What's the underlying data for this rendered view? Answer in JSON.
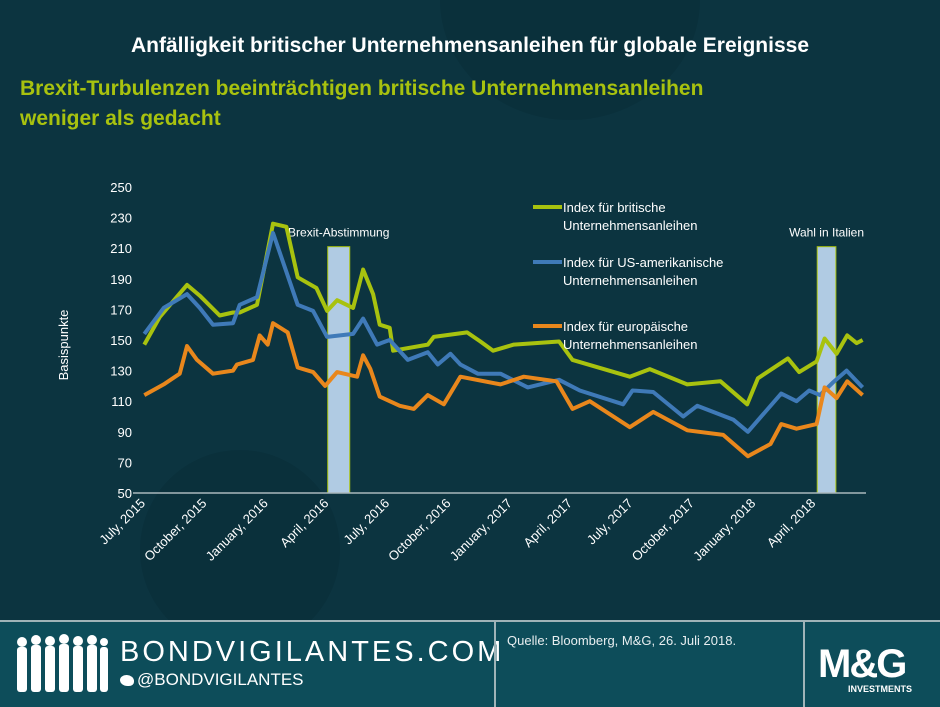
{
  "header": {
    "title": "Anfälligkeit britischer Unternehmensanleihen für globale Ereignisse",
    "subtitle_line1": "Brexit-Turbulenzen beeinträchtigen britische Unternehmensanleihen",
    "subtitle_line2": "weniger als gedacht"
  },
  "chart_data": {
    "type": "line",
    "ylabel": "Basispunkte",
    "ylim": [
      50,
      250
    ],
    "yticks": [
      "250",
      "230",
      "210",
      "190",
      "170",
      "150",
      "130",
      "110",
      "90",
      "70",
      "50"
    ],
    "xticks": [
      {
        "date": "2015-07-01",
        "label": "July, 2015"
      },
      {
        "date": "2015-10-01",
        "label": "October, 2015"
      },
      {
        "date": "2016-01-01",
        "label": "January, 2016"
      },
      {
        "date": "2016-04-01",
        "label": "April, 2016"
      },
      {
        "date": "2016-07-01",
        "label": "July, 2016"
      },
      {
        "date": "2016-10-01",
        "label": "October, 2016"
      },
      {
        "date": "2017-01-01",
        "label": "January, 2017"
      },
      {
        "date": "2017-04-01",
        "label": "April, 2017"
      },
      {
        "date": "2017-07-01",
        "label": "July, 2017"
      },
      {
        "date": "2017-10-01",
        "label": "October, 2017"
      },
      {
        "date": "2018-01-01",
        "label": "January, 2018"
      },
      {
        "date": "2018-04-01",
        "label": "April, 2018"
      }
    ],
    "grid": false,
    "legend_position": "top-right",
    "annotations": [
      {
        "label": "Brexit-Abstimmung",
        "start": "2016-04-03",
        "end": "2016-05-06",
        "top": 211
      },
      {
        "label": "Wahl in Italien",
        "start": "2018-04-07",
        "end": "2018-05-05",
        "top": 211
      }
    ],
    "series": [
      {
        "name": "Index für britische Unternehmensanleihen",
        "color": "#a8c20f",
        "points": [
          [
            "2015-07-03",
            147
          ],
          [
            "2015-07-26",
            165
          ],
          [
            "2015-09-05",
            186
          ],
          [
            "2015-09-24",
            179
          ],
          [
            "2015-10-24",
            166
          ],
          [
            "2015-11-13",
            168
          ],
          [
            "2015-11-23",
            168
          ],
          [
            "2015-12-19",
            173
          ],
          [
            "2016-01-12",
            226
          ],
          [
            "2016-02-01",
            224
          ],
          [
            "2016-02-18",
            191
          ],
          [
            "2016-03-17",
            184
          ],
          [
            "2016-04-02",
            169
          ],
          [
            "2016-04-17",
            176
          ],
          [
            "2016-05-11",
            171
          ],
          [
            "2016-05-26",
            196
          ],
          [
            "2016-06-10",
            180
          ],
          [
            "2016-06-20",
            160
          ],
          [
            "2016-07-05",
            158
          ],
          [
            "2016-07-10",
            143
          ],
          [
            "2016-08-31",
            147
          ],
          [
            "2016-09-09",
            152
          ],
          [
            "2016-10-29",
            155
          ],
          [
            "2016-11-18",
            149
          ],
          [
            "2016-12-07",
            143
          ],
          [
            "2017-01-07",
            147
          ],
          [
            "2017-03-16",
            149
          ],
          [
            "2017-04-05",
            137
          ],
          [
            "2017-06-30",
            126
          ],
          [
            "2017-07-30",
            131
          ],
          [
            "2017-09-24",
            121
          ],
          [
            "2017-11-13",
            123
          ],
          [
            "2017-12-23",
            108
          ],
          [
            "2018-01-08",
            125
          ],
          [
            "2018-02-22",
            138
          ],
          [
            "2018-03-11",
            129
          ],
          [
            "2018-04-06",
            136
          ],
          [
            "2018-04-18",
            151
          ],
          [
            "2018-05-06",
            141
          ],
          [
            "2018-05-22",
            153
          ],
          [
            "2018-06-05",
            148
          ],
          [
            "2018-06-14",
            150
          ]
        ]
      },
      {
        "name": "Index für US-amerikanische Unternehmensanleihen",
        "color": "#3f7ab8",
        "points": [
          [
            "2015-07-03",
            154
          ],
          [
            "2015-08-01",
            171
          ],
          [
            "2015-09-05",
            180
          ],
          [
            "2015-09-24",
            171
          ],
          [
            "2015-10-14",
            160
          ],
          [
            "2015-11-13",
            161
          ],
          [
            "2015-11-23",
            173
          ],
          [
            "2015-12-19",
            178
          ],
          [
            "2016-01-12",
            220
          ],
          [
            "2016-02-18",
            173
          ],
          [
            "2016-03-12",
            169
          ],
          [
            "2016-04-02",
            152
          ],
          [
            "2016-05-11",
            154
          ],
          [
            "2016-05-26",
            164
          ],
          [
            "2016-06-16",
            147
          ],
          [
            "2016-07-05",
            150
          ],
          [
            "2016-08-01",
            137
          ],
          [
            "2016-08-31",
            142
          ],
          [
            "2016-09-15",
            134
          ],
          [
            "2016-10-04",
            141
          ],
          [
            "2016-10-19",
            134
          ],
          [
            "2016-11-14",
            128
          ],
          [
            "2016-12-18",
            128
          ],
          [
            "2017-01-28",
            119
          ],
          [
            "2017-03-16",
            124
          ],
          [
            "2017-04-16",
            117
          ],
          [
            "2017-06-20",
            108
          ],
          [
            "2017-07-04",
            117
          ],
          [
            "2017-08-04",
            116
          ],
          [
            "2017-09-18",
            100
          ],
          [
            "2017-10-09",
            107
          ],
          [
            "2017-12-02",
            98
          ],
          [
            "2017-12-24",
            90
          ],
          [
            "2018-02-12",
            115
          ],
          [
            "2018-03-07",
            110
          ],
          [
            "2018-03-26",
            117
          ],
          [
            "2018-04-11",
            114
          ],
          [
            "2018-04-30",
            122
          ],
          [
            "2018-05-21",
            130
          ],
          [
            "2018-06-14",
            119
          ]
        ]
      },
      {
        "name": "Index für europäische Unternehmensanleihen",
        "color": "#e9871c",
        "points": [
          [
            "2015-07-03",
            114
          ],
          [
            "2015-08-01",
            121
          ],
          [
            "2015-08-25",
            128
          ],
          [
            "2015-09-05",
            146
          ],
          [
            "2015-09-20",
            137
          ],
          [
            "2015-10-14",
            128
          ],
          [
            "2015-11-13",
            130
          ],
          [
            "2015-11-19",
            134
          ],
          [
            "2015-12-13",
            137
          ],
          [
            "2015-12-23",
            153
          ],
          [
            "2016-01-04",
            147
          ],
          [
            "2016-01-12",
            161
          ],
          [
            "2016-02-03",
            155
          ],
          [
            "2016-02-18",
            132
          ],
          [
            "2016-03-12",
            129
          ],
          [
            "2016-03-30",
            120
          ],
          [
            "2016-04-17",
            129
          ],
          [
            "2016-05-17",
            126
          ],
          [
            "2016-05-26",
            140
          ],
          [
            "2016-06-06",
            131
          ],
          [
            "2016-06-20",
            113
          ],
          [
            "2016-07-20",
            107
          ],
          [
            "2016-08-10",
            105
          ],
          [
            "2016-08-31",
            114
          ],
          [
            "2016-09-24",
            108
          ],
          [
            "2016-10-19",
            126
          ],
          [
            "2016-12-18",
            121
          ],
          [
            "2017-01-22",
            126
          ],
          [
            "2017-03-12",
            123
          ],
          [
            "2017-04-05",
            105
          ],
          [
            "2017-05-01",
            110
          ],
          [
            "2017-06-30",
            93
          ],
          [
            "2017-08-04",
            103
          ],
          [
            "2017-09-24",
            91
          ],
          [
            "2017-11-17",
            88
          ],
          [
            "2017-12-24",
            74
          ],
          [
            "2018-01-27",
            82
          ],
          [
            "2018-02-12",
            95
          ],
          [
            "2018-03-07",
            92
          ],
          [
            "2018-04-06",
            95
          ],
          [
            "2018-04-18",
            119
          ],
          [
            "2018-05-06",
            112
          ],
          [
            "2018-05-22",
            123
          ],
          [
            "2018-06-14",
            114
          ]
        ]
      }
    ],
    "legend": [
      {
        "line1": "Index für britische",
        "line2": "Unternehmensanleihen",
        "color": "#a8c20f"
      },
      {
        "line1": "Index für US-amerikanische",
        "line2": "Unternehmensanleihen",
        "color": "#3f7ab8"
      },
      {
        "line1": "Index für europäische",
        "line2": "Unternehmensanleihen",
        "color": "#e9871c"
      }
    ]
  },
  "footer": {
    "brand": "BONDVIGILANTES.COM",
    "handle": "@BONDVIGILANTES",
    "source": "Quelle: Bloomberg, M&G, 26. Juli 2018.",
    "logo_text": "M&G",
    "logo_sub": "INVESTMENTS"
  }
}
